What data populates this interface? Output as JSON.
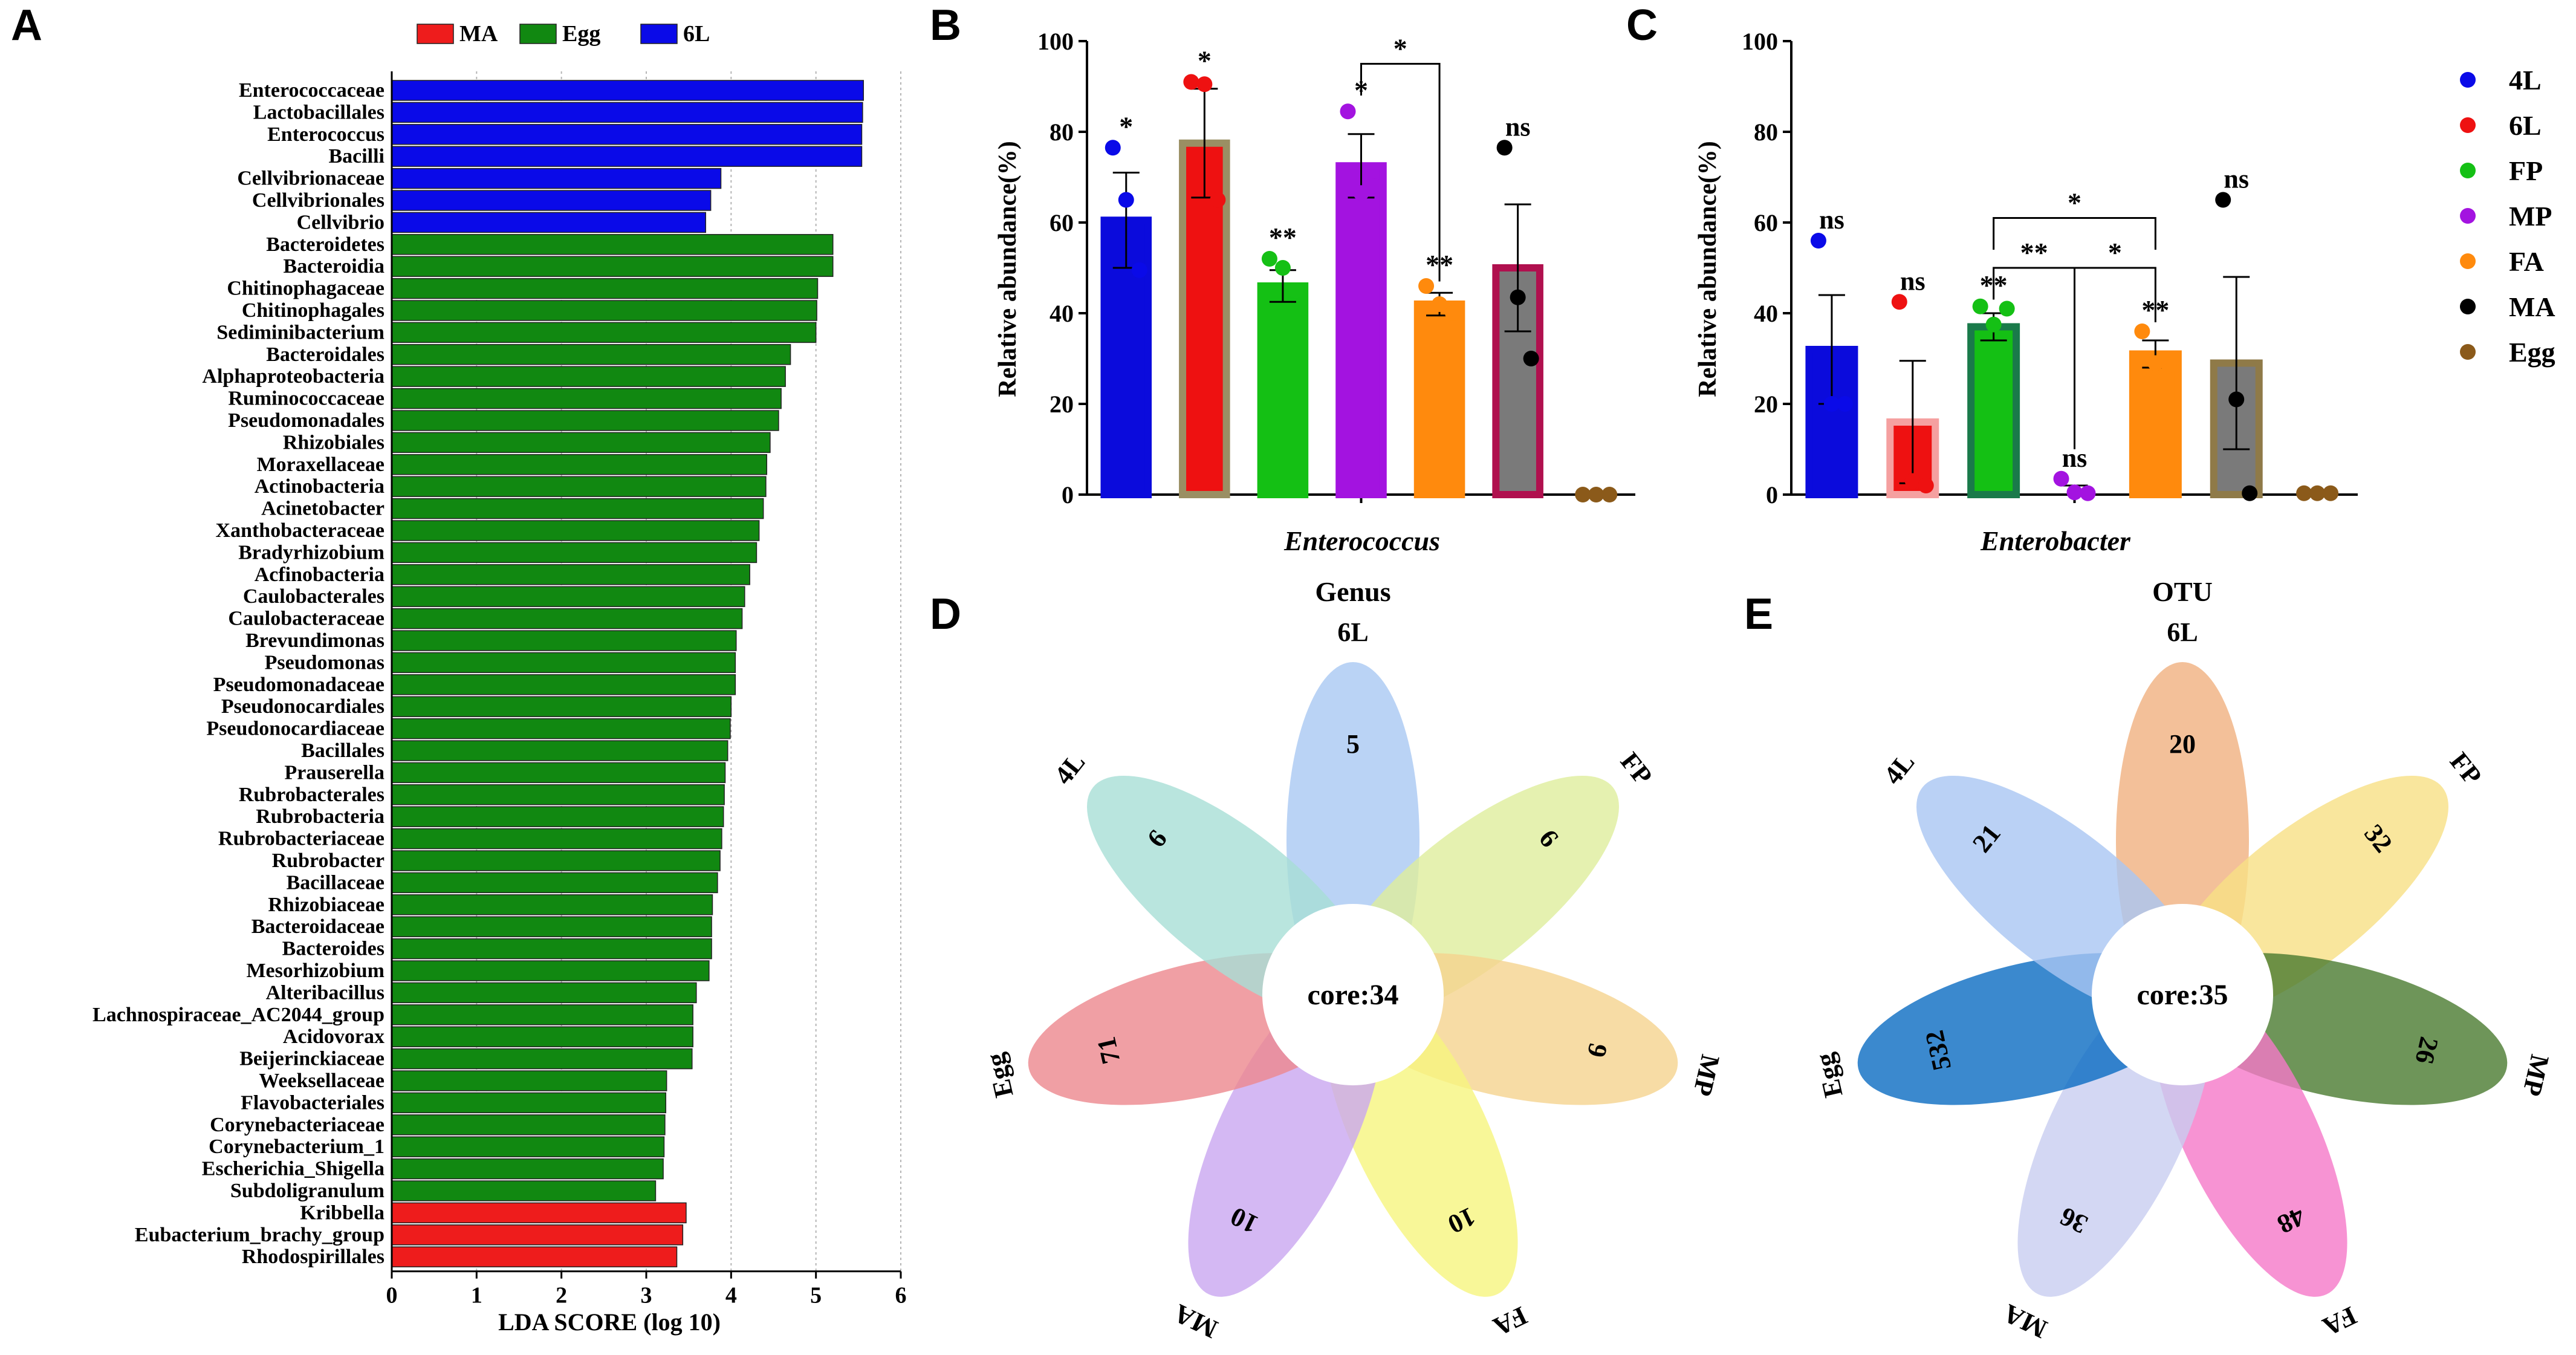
{
  "panels": {
    "A": "A",
    "B": "B",
    "C": "C",
    "D": "D",
    "E": "E"
  },
  "colors": {
    "MA_lda": "#ee1c1c",
    "Egg_lda": "#118811",
    "6L_lda": "#0a0ae8",
    "4L": "#0a0ae8",
    "6L": "#ee1111",
    "FP": "#15c015",
    "MP": "#a313e0",
    "FA": "#ff8a0d",
    "MA": "#000000",
    "Egg": "#8b5a1a",
    "bar_B_fill": [
      "#0b0bdc",
      "#ee1111",
      "#14c014",
      "#a313e0",
      "#ff8a0d",
      "#7a7a7a",
      "#8b5a1a"
    ],
    "bar_B_edge": [
      "#0b0bdc",
      "#9a8f63",
      "#14c014",
      "#a313e0",
      "#ff8a0d",
      "#b0104e",
      "#8b5a1a"
    ],
    "bar_C_fill": [
      "#0b0bdc",
      "#ee1111",
      "#14c014",
      "#a313e0",
      "#ff8a0d",
      "#7a7a7a",
      "#8b5a1a"
    ],
    "bar_C_edge": [
      "#0b0bdc",
      "#f5a0a0",
      "#1a7a4a",
      "#a313e0",
      "#ff8a0d",
      "#8f7a48",
      "#8b5a1a"
    ]
  },
  "chart_data": [
    {
      "panel": "A",
      "type": "bar",
      "orientation": "horizontal",
      "xlabel": "LDA SCORE (log 10)",
      "xlim": [
        0,
        6
      ],
      "xticks": [
        0,
        1,
        2,
        3,
        4,
        5,
        6
      ],
      "legend": [
        {
          "name": "MA",
          "color": "#ee1c1c"
        },
        {
          "name": "Egg",
          "color": "#118811"
        },
        {
          "name": "6L",
          "color": "#0a0ae8"
        }
      ],
      "categories": [
        "Enterococcaceae",
        "Lactobacillales",
        "Enterococcus",
        "Bacilli",
        "Cellvibrionaceae",
        "Cellvibrionales",
        "Cellvibrio",
        "Bacteroidetes",
        "Bacteroidia",
        "Chitinophagaceae",
        "Chitinophagales",
        "Sediminibacterium",
        "Bacteroidales",
        "Alphaproteobacteria",
        "Ruminococcaceae",
        "Pseudomonadales",
        "Rhizobiales",
        "Moraxellaceae",
        "Actinobacteria",
        "Acinetobacter",
        "Xanthobacteraceae",
        "Bradyrhizobium",
        "Acfinobacteria",
        "Caulobacterales",
        "Caulobacteraceae",
        "Brevundimonas",
        "Pseudomonas",
        "Pseudomonadaceae",
        "Pseudonocardiales",
        "Pseudonocardiaceae",
        "Bacillales",
        "Prauserella",
        "Rubrobacterales",
        "Rubrobacteria",
        "Rubrobacteriaceae",
        "Rubrobacter",
        "Bacillaceae",
        "Rhizobiaceae",
        "Bacteroidaceae",
        "Bacteroides",
        "Mesorhizobium",
        "Alteribacillus",
        "Lachnospiraceae_AC2044_group",
        "Acidovorax",
        "Beijerinckiaceae",
        "Weeksellaceae",
        "Flavobacteriales",
        "Corynebacteriaceae",
        "Corynebacterium_1",
        "Escherichia_Shigella",
        "Subdoligranulum",
        "Kribbella",
        "Eubacterium_brachy_group",
        "Rhodospirillales"
      ],
      "values": [
        5.56,
        5.55,
        5.54,
        5.54,
        3.88,
        3.76,
        3.7,
        5.2,
        5.2,
        5.02,
        5.01,
        5.0,
        4.7,
        4.64,
        4.59,
        4.56,
        4.46,
        4.42,
        4.41,
        4.38,
        4.33,
        4.3,
        4.22,
        4.16,
        4.13,
        4.06,
        4.05,
        4.05,
        4.0,
        3.99,
        3.96,
        3.93,
        3.92,
        3.91,
        3.89,
        3.87,
        3.84,
        3.78,
        3.77,
        3.77,
        3.74,
        3.59,
        3.55,
        3.55,
        3.54,
        3.24,
        3.23,
        3.22,
        3.21,
        3.2,
        3.11,
        3.47,
        3.43,
        3.36
      ],
      "groups": [
        "6L",
        "6L",
        "6L",
        "6L",
        "6L",
        "6L",
        "6L",
        "Egg",
        "Egg",
        "Egg",
        "Egg",
        "Egg",
        "Egg",
        "Egg",
        "Egg",
        "Egg",
        "Egg",
        "Egg",
        "Egg",
        "Egg",
        "Egg",
        "Egg",
        "Egg",
        "Egg",
        "Egg",
        "Egg",
        "Egg",
        "Egg",
        "Egg",
        "Egg",
        "Egg",
        "Egg",
        "Egg",
        "Egg",
        "Egg",
        "Egg",
        "Egg",
        "Egg",
        "Egg",
        "Egg",
        "Egg",
        "Egg",
        "Egg",
        "Egg",
        "Egg",
        "Egg",
        "Egg",
        "Egg",
        "Egg",
        "Egg",
        "Egg",
        "MA",
        "MA",
        "MA"
      ]
    },
    {
      "panel": "B",
      "type": "bar",
      "ylabel": "Relative  abundance(%)",
      "xlabel": "Enterococcus",
      "ylim": [
        0,
        100
      ],
      "yticks": [
        0,
        20,
        40,
        60,
        80,
        100
      ],
      "categories": [
        "4L",
        "6L",
        "FP",
        "MP",
        "FA",
        "MA",
        "Egg"
      ],
      "values": [
        60.5,
        77.5,
        46,
        72.5,
        42,
        50,
        0.5
      ],
      "error": [
        10.5,
        12,
        3.5,
        7,
        2.5,
        14,
        0
      ],
      "points": [
        [
          76.5,
          65,
          49.5
        ],
        [
          91,
          90.5,
          65
        ],
        [
          52,
          50,
          45
        ],
        [
          84.5,
          66.5,
          68
        ],
        [
          46,
          42,
          40
        ],
        [
          76.5,
          43.5,
          30
        ],
        [
          0,
          0,
          0
        ]
      ],
      "significance": [
        "*",
        "*",
        "**",
        "*",
        "**",
        "ns",
        ""
      ],
      "brackets": [
        {
          "from": "MP",
          "to": "FA",
          "label": "*"
        }
      ]
    },
    {
      "panel": "C",
      "type": "bar",
      "ylabel": "Relative  abundance(%)",
      "xlabel": "Enterobacter",
      "ylim": [
        0,
        100
      ],
      "yticks": [
        0,
        20,
        40,
        60,
        80,
        100
      ],
      "categories": [
        "4L",
        "6L",
        "FP",
        "MP",
        "FA",
        "MA",
        "Egg"
      ],
      "values": [
        32,
        16,
        37,
        1,
        31,
        29,
        0.3
      ],
      "error": [
        12,
        13.5,
        3,
        1,
        3,
        19,
        0
      ],
      "points": [
        [
          56,
          20,
          20
        ],
        [
          42.5,
          3,
          2
        ],
        [
          41.5,
          37.5,
          41
        ],
        [
          3.5,
          0.5,
          0.3
        ],
        [
          36,
          29,
          28.5
        ],
        [
          65,
          21,
          0.3
        ],
        [
          0.3,
          0.3,
          0.3
        ]
      ],
      "significance": [
        "ns",
        "ns",
        "**",
        "ns",
        "**",
        "ns",
        ""
      ],
      "brackets": [
        {
          "from": "FP",
          "to": "FA",
          "label": "*"
        },
        {
          "from": "FP",
          "to": "MP",
          "label": "**"
        },
        {
          "from": "MP",
          "to": "FA",
          "label": "*"
        }
      ],
      "legend": [
        "4L",
        "6L",
        "FP",
        "MP",
        "FA",
        "MA",
        "Egg"
      ]
    },
    {
      "panel": "D",
      "type": "flower-venn",
      "title": "Genus",
      "core_label": "core:34",
      "petals": [
        {
          "name": "6L",
          "value": 5,
          "color": "#a9c8f2"
        },
        {
          "name": "FP",
          "value": 6,
          "color": "#dfee9c"
        },
        {
          "name": "MP",
          "value": 9,
          "color": "#f5d38e"
        },
        {
          "name": "FA",
          "value": 10,
          "color": "#f6f57e"
        },
        {
          "name": "MA",
          "value": 10,
          "color": "#c9a6f0"
        },
        {
          "name": "Egg",
          "value": 71,
          "color": "#ec878d"
        },
        {
          "name": "4L",
          "value": 6,
          "color": "#a8ded6"
        }
      ]
    },
    {
      "panel": "E",
      "type": "flower-venn",
      "title": "OTU",
      "core_label": "core:35",
      "petals": [
        {
          "name": "6L",
          "value": 20,
          "color": "#f0b080"
        },
        {
          "name": "FP",
          "value": 32,
          "color": "#f8e084"
        },
        {
          "name": "MP",
          "value": 26,
          "color": "#4a7a30"
        },
        {
          "name": "FA",
          "value": 48,
          "color": "#f578c8"
        },
        {
          "name": "MA",
          "value": 36,
          "color": "#c8cdf0"
        },
        {
          "name": "Egg",
          "value": 532,
          "color": "#0a6cc2"
        },
        {
          "name": "4L",
          "value": 21,
          "color": "#a9c5f2"
        }
      ]
    }
  ]
}
